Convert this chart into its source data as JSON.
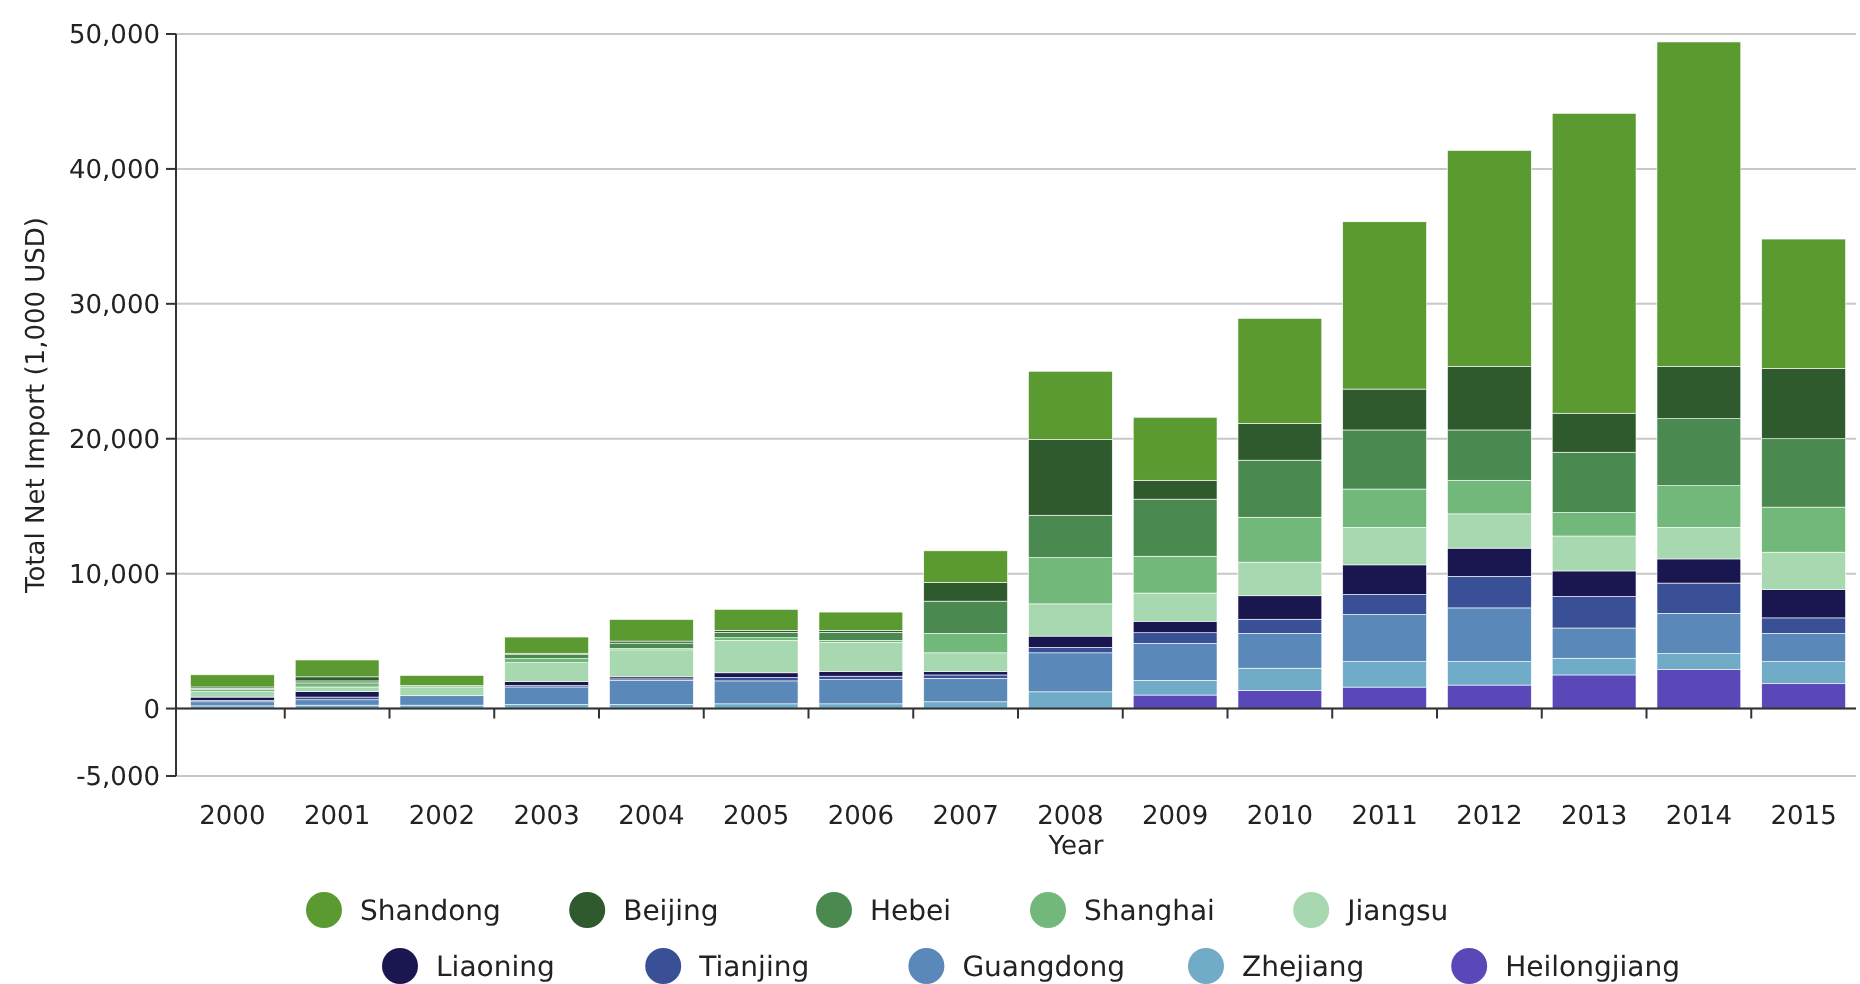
{
  "chart_data": {
    "type": "bar",
    "stacked": true,
    "xlabel": "Year",
    "ylabel": "Total Net Import (1,000 USD)",
    "categories": [
      "2000",
      "2001",
      "2002",
      "2003",
      "2004",
      "2005",
      "2006",
      "2007",
      "2008",
      "2009",
      "2010",
      "2011",
      "2012",
      "2013",
      "2014",
      "2015"
    ],
    "series": [
      {
        "name": "Heilongjiang",
        "color": "#5a48b8",
        "values": [
          0,
          0,
          0,
          0,
          0,
          0,
          0,
          0,
          0,
          1000,
          1340,
          1590,
          1740,
          2490,
          2890,
          1840
        ]
      },
      {
        "name": "Zhejiang",
        "color": "#70acc8",
        "values": [
          200,
          250,
          250,
          300,
          300,
          350,
          350,
          500,
          1240,
          1090,
          1650,
          1890,
          1740,
          1240,
          1190,
          1640
        ]
      },
      {
        "name": "Guangdong",
        "color": "#5a88b8",
        "values": [
          300,
          400,
          700,
          1300,
          1800,
          1700,
          1800,
          1740,
          2890,
          2740,
          2580,
          3490,
          3980,
          2240,
          2980,
          2090
        ]
      },
      {
        "name": "Tianjing",
        "color": "#3a5096",
        "values": [
          100,
          200,
          0,
          100,
          100,
          250,
          250,
          250,
          400,
          790,
          1050,
          1490,
          2340,
          2340,
          2240,
          1150
        ]
      },
      {
        "name": "Liaoning",
        "color": "#1a1650",
        "values": [
          250,
          400,
          0,
          300,
          150,
          350,
          350,
          250,
          840,
          850,
          1740,
          2190,
          2090,
          1890,
          1790,
          2090
        ]
      },
      {
        "name": "Jiangsu",
        "color": "#a8d8b0",
        "values": [
          400,
          350,
          650,
          1400,
          2000,
          2400,
          2150,
          1390,
          2390,
          2090,
          2490,
          2780,
          2540,
          2590,
          2340,
          2780
        ]
      },
      {
        "name": "Shanghai",
        "color": "#72b87a",
        "values": [
          150,
          300,
          100,
          300,
          100,
          200,
          150,
          1440,
          3430,
          2730,
          3330,
          2840,
          2490,
          1740,
          3090,
          3340
        ]
      },
      {
        "name": "Hebei",
        "color": "#4a8a50",
        "values": [
          100,
          150,
          0,
          300,
          400,
          400,
          600,
          2390,
          3140,
          4230,
          4230,
          4380,
          3730,
          4470,
          4970,
          5070
        ]
      },
      {
        "name": "Beijing",
        "color": "#2e5a2e",
        "values": [
          100,
          300,
          0,
          100,
          150,
          150,
          150,
          1390,
          5620,
          1400,
          2730,
          3030,
          4720,
          2890,
          3880,
          5220
        ]
      },
      {
        "name": "Shandong",
        "color": "#5a9a30",
        "values": [
          900,
          1250,
          750,
          1200,
          1600,
          1550,
          1350,
          2340,
          5050,
          4670,
          7780,
          12400,
          16000,
          22230,
          24040,
          9580
        ]
      }
    ],
    "ylim": [
      -5000,
      50000
    ],
    "yticks": [
      {
        "value": -5000,
        "label": "-5,000"
      },
      0,
      {
        "value": 10000,
        "label": "10,000"
      },
      {
        "value": 20000,
        "label": "20,000"
      },
      {
        "value": 30000,
        "label": "30,000"
      },
      {
        "value": 40000,
        "label": "40,000"
      },
      {
        "value": 50000,
        "label": "50,000"
      }
    ],
    "grid": "y",
    "legend": "bottom",
    "marker": "circle"
  }
}
